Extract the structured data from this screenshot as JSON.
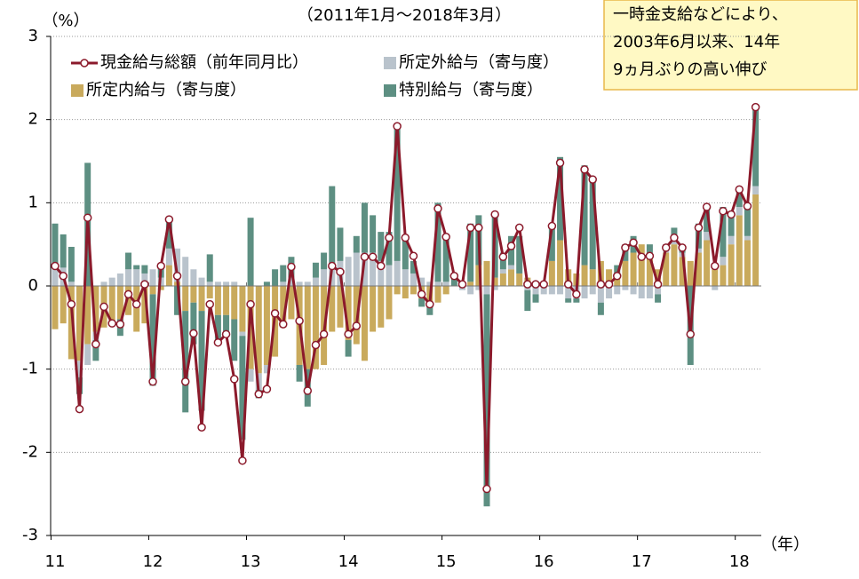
{
  "chart_data": {
    "type": "bar",
    "title": "（2011年1月～2018年3月）",
    "y_label": "（%）",
    "x_label": "（年）",
    "annotation": [
      "一時金支給などにより、",
      "2003年6月以来、14年",
      "9ヵ月ぶりの高い伸び"
    ],
    "categories": [
      "11",
      null,
      null,
      null,
      null,
      null,
      null,
      null,
      null,
      null,
      null,
      null,
      "12",
      null,
      null,
      null,
      null,
      null,
      null,
      null,
      null,
      null,
      null,
      null,
      "13",
      null,
      null,
      null,
      null,
      null,
      null,
      null,
      null,
      null,
      null,
      null,
      "14",
      null,
      null,
      null,
      null,
      null,
      null,
      null,
      null,
      null,
      null,
      null,
      "15",
      null,
      null,
      null,
      null,
      null,
      null,
      null,
      null,
      null,
      null,
      null,
      "16",
      null,
      null,
      null,
      null,
      null,
      null,
      null,
      null,
      null,
      null,
      null,
      "17",
      null,
      null,
      null,
      null,
      null,
      null,
      null,
      null,
      null,
      null,
      null,
      "18",
      null,
      null
    ],
    "ylim": [
      -3,
      3
    ],
    "yticks": [
      -3,
      -2,
      -1,
      0,
      1,
      2,
      3
    ],
    "grid": true,
    "series": [
      {
        "name": "現金給与総額（前年同月比）",
        "type": "line",
        "color": "#8b1a2b",
        "values": [
          0.24,
          0.12,
          -0.22,
          -1.48,
          0.82,
          -0.7,
          -0.25,
          -0.45,
          -0.46,
          -0.1,
          -0.22,
          0.02,
          -1.15,
          0.24,
          0.8,
          0.12,
          -1.15,
          -0.57,
          -1.7,
          -0.22,
          -0.68,
          -0.58,
          -1.12,
          -2.1,
          -0.22,
          -1.3,
          -1.24,
          -0.33,
          -0.46,
          0.23,
          -0.42,
          -1.26,
          -0.71,
          -0.58,
          0.24,
          0.17,
          -0.58,
          -0.48,
          0.35,
          0.35,
          0.24,
          0.58,
          1.92,
          0.58,
          0.36,
          -0.1,
          -0.22,
          0.93,
          0.59,
          0.12,
          0.02,
          0.7,
          0.7,
          -2.44,
          0.86,
          0.35,
          0.48,
          0.7,
          0.02,
          0.02,
          0.02,
          0.72,
          1.48,
          0.02,
          -0.1,
          1.4,
          1.28,
          0.02,
          0.02,
          0.12,
          0.46,
          0.52,
          0.35,
          0.36,
          0.02,
          0.46,
          0.58,
          0.46,
          -0.58,
          0.7,
          0.95,
          0.24,
          0.9,
          0.86,
          1.16,
          0.96,
          2.15
        ]
      },
      {
        "name": "所定外給与（寄与度）",
        "type": "bar",
        "color": "#b9c3cc",
        "values": [
          0.2,
          0.22,
          0.05,
          -0.2,
          -0.25,
          -0.1,
          0.05,
          0.1,
          0.15,
          0.2,
          0.2,
          0.15,
          0.2,
          0.1,
          0.2,
          0.4,
          0.35,
          0.2,
          0.1,
          0.05,
          0.05,
          0.05,
          0.05,
          -0.05,
          -0.15,
          -0.2,
          -0.1,
          0.0,
          0.05,
          0.1,
          0.05,
          0.05,
          0.1,
          0.2,
          0.25,
          0.3,
          0.35,
          0.4,
          0.4,
          0.4,
          0.3,
          0.25,
          0.3,
          0.2,
          0.15,
          0.1,
          0.05,
          0.05,
          0.05,
          0.0,
          -0.05,
          -0.1,
          -0.05,
          -0.1,
          -0.05,
          0.05,
          0.05,
          0.0,
          -0.05,
          -0.1,
          -0.1,
          -0.1,
          -0.1,
          -0.15,
          -0.15,
          -0.15,
          -0.1,
          -0.2,
          -0.15,
          -0.1,
          -0.05,
          -0.1,
          -0.15,
          -0.15,
          -0.1,
          0.05,
          0.05,
          0.05,
          0.0,
          0.05,
          0.1,
          -0.05,
          0.1,
          0.1,
          0.1,
          0.05,
          0.1
        ]
      },
      {
        "name": "所定内給与（寄与度）",
        "type": "bar",
        "color": "#c9aa5c",
        "values": [
          -0.52,
          -0.45,
          -0.88,
          -0.9,
          -0.7,
          -0.55,
          -0.5,
          -0.45,
          -0.4,
          -0.35,
          -0.55,
          -0.45,
          -0.1,
          -0.05,
          0.25,
          0.05,
          -0.3,
          -0.2,
          -0.3,
          -0.15,
          -0.35,
          -0.35,
          -0.4,
          -0.55,
          -1.0,
          -1.05,
          -0.95,
          -0.85,
          -0.5,
          -0.4,
          -0.95,
          -1.0,
          -1.0,
          -0.95,
          -0.55,
          -0.5,
          -0.65,
          -0.7,
          -0.9,
          -0.55,
          -0.5,
          -0.4,
          -0.1,
          -0.15,
          -0.1,
          -0.15,
          -0.25,
          -0.2,
          -0.1,
          0.0,
          0.0,
          0.05,
          0.25,
          0.3,
          0.1,
          0.15,
          0.2,
          0.15,
          0.1,
          0.05,
          0.05,
          0.3,
          0.55,
          0.2,
          0.15,
          0.25,
          0.2,
          0.3,
          0.2,
          0.15,
          0.3,
          0.4,
          0.5,
          0.35,
          0.2,
          0.4,
          0.5,
          0.35,
          0.3,
          0.4,
          0.55,
          0.2,
          0.25,
          0.5,
          0.85,
          0.55,
          1.1
        ]
      },
      {
        "name": "特別給与（寄与度）",
        "type": "bar",
        "color": "#5d8f82",
        "values": [
          0.55,
          0.4,
          0.42,
          -0.2,
          1.48,
          -0.25,
          0.0,
          0.0,
          -0.2,
          0.2,
          0.05,
          0.1,
          -1.1,
          0.15,
          0.35,
          -0.35,
          -1.22,
          -0.5,
          -1.2,
          0.33,
          -0.35,
          -0.2,
          -0.5,
          -1.25,
          0.82,
          -0.1,
          0.05,
          0.2,
          0.2,
          0.25,
          -0.2,
          -0.45,
          0.18,
          0.2,
          0.95,
          0.4,
          -0.2,
          0.2,
          0.6,
          0.45,
          0.35,
          0.4,
          1.62,
          0.4,
          0.15,
          -0.1,
          -0.1,
          0.95,
          0.55,
          0.1,
          0.05,
          0.7,
          0.6,
          -2.55,
          0.75,
          0.2,
          0.35,
          0.45,
          -0.25,
          -0.1,
          0.0,
          0.4,
          1.0,
          -0.05,
          -0.05,
          1.2,
          1.1,
          -0.15,
          0.0,
          0.1,
          0.2,
          0.2,
          0.0,
          0.15,
          -0.1,
          0.05,
          0.15,
          0.05,
          -0.95,
          0.3,
          0.3,
          0.05,
          0.6,
          0.3,
          0.2,
          0.35,
          0.95
        ]
      }
    ]
  }
}
